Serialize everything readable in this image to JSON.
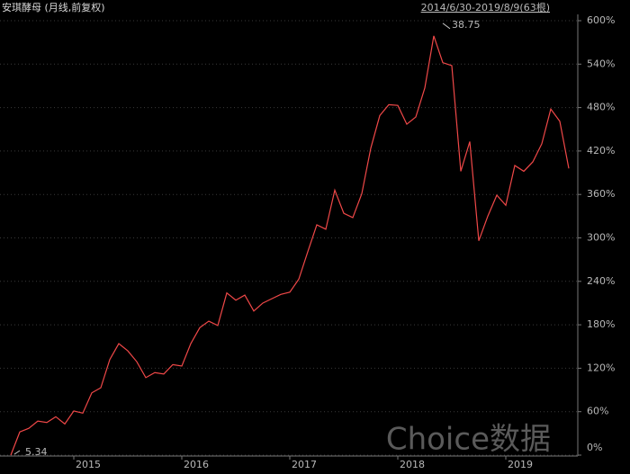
{
  "chart_data": {
    "type": "line",
    "title": "安琪酵母 (月线,前复权)",
    "subtitle": "2014/6/30-2019/8/9(63根)",
    "watermark": "Choice数据",
    "annotations": [
      "5.34",
      "38.75"
    ],
    "categories": [
      null,
      null,
      null,
      null,
      null,
      null,
      null,
      "2015",
      null,
      null,
      null,
      null,
      null,
      null,
      null,
      null,
      null,
      null,
      null,
      "2016",
      null,
      null,
      null,
      null,
      null,
      null,
      null,
      null,
      null,
      null,
      null,
      "2017",
      null,
      null,
      null,
      null,
      null,
      null,
      null,
      null,
      null,
      null,
      null,
      "2018",
      null,
      null,
      null,
      null,
      null,
      null,
      null,
      null,
      null,
      null,
      null,
      "2019",
      null,
      null,
      null,
      null,
      null,
      null,
      null
    ],
    "series": [
      {
        "name": "安琪酵母",
        "color": "#f04848",
        "values": [
          0,
          32,
          37,
          47,
          45,
          53,
          43,
          61,
          58,
          86,
          93,
          132,
          154,
          144,
          129,
          107,
          114,
          112,
          125,
          123,
          154,
          176,
          185,
          179,
          224,
          214,
          221,
          199,
          210,
          216,
          222,
          225,
          243,
          281,
          318,
          312,
          366,
          334,
          328,
          361,
          424,
          469,
          484,
          483,
          457,
          467,
          507,
          579,
          542,
          538,
          392,
          433,
          296,
          330,
          359,
          345,
          400,
          392,
          405,
          430,
          478,
          461,
          396
        ]
      }
    ],
    "ylim": [
      0,
      600
    ],
    "yticks": [
      {
        "value": 0,
        "label": "0%"
      },
      {
        "value": 60,
        "label": "60%"
      },
      {
        "value": 120,
        "label": "120%"
      },
      {
        "value": 180,
        "label": "180%"
      },
      {
        "value": 240,
        "label": "240%"
      },
      {
        "value": 300,
        "label": "300%"
      },
      {
        "value": 360,
        "label": "360%"
      },
      {
        "value": 420,
        "label": "420%"
      },
      {
        "value": 480,
        "label": "480%"
      },
      {
        "value": 540,
        "label": "540%"
      },
      {
        "value": 600,
        "label": "600%"
      }
    ],
    "grid": true
  }
}
